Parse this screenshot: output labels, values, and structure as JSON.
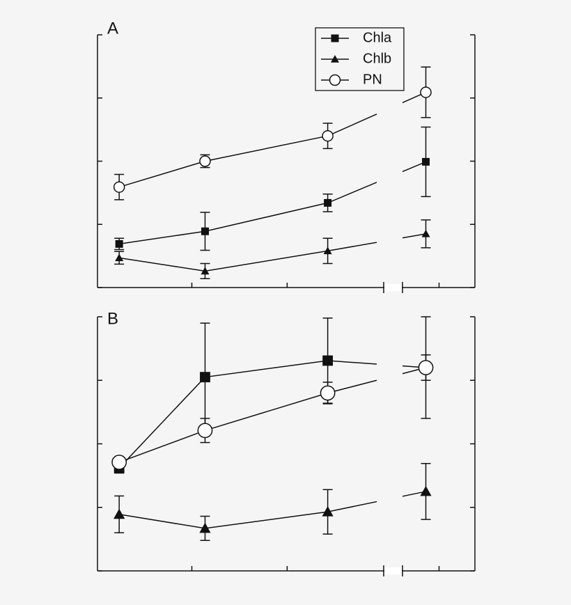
{
  "chart_data": [
    {
      "type": "line",
      "label": "A",
      "legend": "upper right",
      "x": [
        0.23,
        1.14,
        2.44,
        3.48
      ],
      "xlim": [
        0,
        4
      ],
      "xticks": [
        1,
        2.01,
        3.62
      ],
      "ylim": [
        0,
        4
      ],
      "yticks": [
        0,
        1,
        2,
        3,
        4
      ],
      "series": [
        {
          "name": "Chla",
          "color": "#111111",
          "marker": "square",
          "values": [
            0.69,
            0.89,
            1.34,
            1.99
          ],
          "errors": [
            0.09,
            0.3,
            0.14,
            0.55
          ]
        },
        {
          "name": "Chlb",
          "color": "#111111",
          "marker": "triangle",
          "values": [
            0.47,
            0.26,
            0.58,
            0.85
          ],
          "errors": [
            0.1,
            0.12,
            0.2,
            0.22
          ]
        },
        {
          "name": "PN",
          "color": "#111111",
          "marker": "circle",
          "values": [
            1.59,
            2.0,
            2.4,
            3.09
          ],
          "errors": [
            0.2,
            0.1,
            0.2,
            0.4
          ]
        }
      ]
    },
    {
      "type": "line",
      "label": "B",
      "x": [
        0.23,
        1.14,
        2.44,
        3.48
      ],
      "xlim": [
        0,
        4
      ],
      "xticks": [
        1,
        2.01,
        3.62
      ],
      "ylim": [
        0,
        4
      ],
      "yticks": [
        0,
        1,
        2,
        3,
        4
      ],
      "series": [
        {
          "name": "Chla",
          "color": "#111111",
          "marker": "square",
          "values": [
            1.62,
            3.05,
            3.31,
            3.2
          ],
          "errors": [
            0.08,
            0.85,
            0.67,
            0.8
          ]
        },
        {
          "name": "Chlb",
          "color": "#111111",
          "marker": "triangle",
          "values": [
            0.89,
            0.67,
            0.93,
            1.25
          ],
          "errors": [
            0.29,
            0.19,
            0.35,
            0.44
          ]
        },
        {
          "name": "PN",
          "color": "#111111",
          "marker": "circle",
          "values": [
            1.71,
            2.21,
            2.8,
            3.2
          ],
          "errors": [
            0.08,
            0.19,
            0.17,
            0.2
          ]
        }
      ]
    }
  ]
}
